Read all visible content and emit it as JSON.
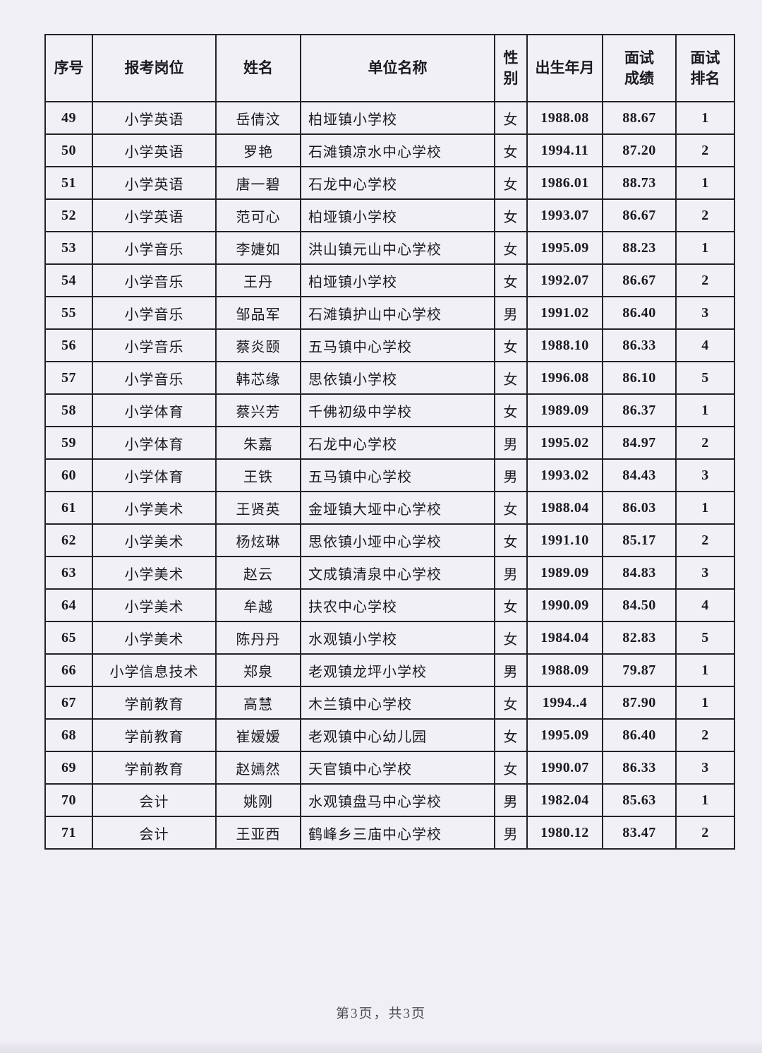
{
  "table": {
    "headers": [
      "序号",
      "报考岗位",
      "姓名",
      "单位名称",
      "性\n别",
      "出生年月",
      "面试\n成绩",
      "面试\n排名"
    ],
    "rows": [
      [
        "49",
        "小学英语",
        "岳倩汶",
        "柏垭镇小学校",
        "女",
        "1988.08",
        "88.67",
        "1"
      ],
      [
        "50",
        "小学英语",
        "罗艳",
        "石滩镇凉水中心学校",
        "女",
        "1994.11",
        "87.20",
        "2"
      ],
      [
        "51",
        "小学英语",
        "唐一碧",
        "石龙中心学校",
        "女",
        "1986.01",
        "88.73",
        "1"
      ],
      [
        "52",
        "小学英语",
        "范可心",
        "柏垭镇小学校",
        "女",
        "1993.07",
        "86.67",
        "2"
      ],
      [
        "53",
        "小学音乐",
        "李婕如",
        "洪山镇元山中心学校",
        "女",
        "1995.09",
        "88.23",
        "1"
      ],
      [
        "54",
        "小学音乐",
        "王丹",
        "柏垭镇小学校",
        "女",
        "1992.07",
        "86.67",
        "2"
      ],
      [
        "55",
        "小学音乐",
        "邹品军",
        "石滩镇护山中心学校",
        "男",
        "1991.02",
        "86.40",
        "3"
      ],
      [
        "56",
        "小学音乐",
        "蔡炎颐",
        "五马镇中心学校",
        "女",
        "1988.10",
        "86.33",
        "4"
      ],
      [
        "57",
        "小学音乐",
        "韩芯缘",
        "思依镇小学校",
        "女",
        "1996.08",
        "86.10",
        "5"
      ],
      [
        "58",
        "小学体育",
        "蔡兴芳",
        "千佛初级中学校",
        "女",
        "1989.09",
        "86.37",
        "1"
      ],
      [
        "59",
        "小学体育",
        "朱嘉",
        "石龙中心学校",
        "男",
        "1995.02",
        "84.97",
        "2"
      ],
      [
        "60",
        "小学体育",
        "王铁",
        "五马镇中心学校",
        "男",
        "1993.02",
        "84.43",
        "3"
      ],
      [
        "61",
        "小学美术",
        "王贤英",
        "金垭镇大垭中心学校",
        "女",
        "1988.04",
        "86.03",
        "1"
      ],
      [
        "62",
        "小学美术",
        "杨炫琳",
        "思依镇小垭中心学校",
        "女",
        "1991.10",
        "85.17",
        "2"
      ],
      [
        "63",
        "小学美术",
        "赵云",
        "文成镇清泉中心学校",
        "男",
        "1989.09",
        "84.83",
        "3"
      ],
      [
        "64",
        "小学美术",
        "牟越",
        "扶农中心学校",
        "女",
        "1990.09",
        "84.50",
        "4"
      ],
      [
        "65",
        "小学美术",
        "陈丹丹",
        "水观镇小学校",
        "女",
        "1984.04",
        "82.83",
        "5"
      ],
      [
        "66",
        "小学信息技术",
        "郑泉",
        "老观镇龙坪小学校",
        "男",
        "1988.09",
        "79.87",
        "1"
      ],
      [
        "67",
        "学前教育",
        "高慧",
        "木兰镇中心学校",
        "女",
        "1994..4",
        "87.90",
        "1"
      ],
      [
        "68",
        "学前教育",
        "崔嫒嫒",
        "老观镇中心幼儿园",
        "女",
        "1995.09",
        "86.40",
        "2"
      ],
      [
        "69",
        "学前教育",
        "赵嫣然",
        "天官镇中心学校",
        "女",
        "1990.07",
        "86.33",
        "3"
      ],
      [
        "70",
        "会计",
        "姚刚",
        "水观镇盘马中心学校",
        "男",
        "1982.04",
        "85.63",
        "1"
      ],
      [
        "71",
        "会计",
        "王亚西",
        "鹤峰乡三庙中心学校",
        "男",
        "1980.12",
        "83.47",
        "2"
      ]
    ]
  },
  "footer": {
    "page_text": "第3页，共3页"
  }
}
